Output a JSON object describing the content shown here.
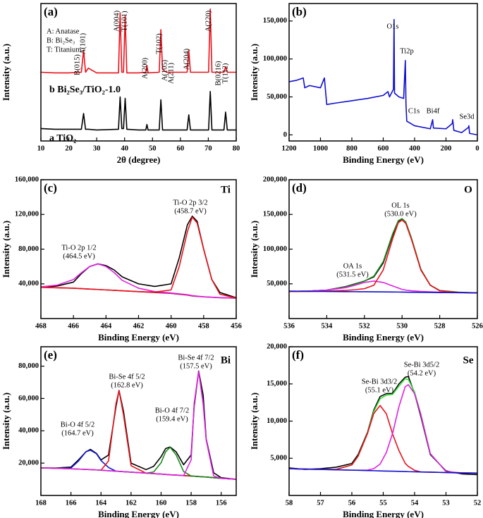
{
  "chart_data": [
    {
      "type": "line",
      "label": "(a)",
      "x_label": "2θ (degree)",
      "y_label": "Intensity (a.u.)",
      "x": [
        10,
        15,
        20,
        24.5,
        25.3,
        26,
        27,
        30,
        37.8,
        38.4,
        39,
        39.6,
        40.2,
        40.8,
        45,
        47.6,
        48,
        48.4,
        52.4,
        53,
        53.6,
        55,
        62.4,
        63,
        63.6,
        68,
        70.1,
        70.7,
        71.3,
        75.6,
        76.2,
        76.8,
        80
      ],
      "xlim": [
        10,
        80
      ],
      "xticks": [
        10,
        20,
        30,
        40,
        50,
        60,
        70,
        80
      ],
      "ylim": [
        0,
        100
      ],
      "series": [
        {
          "color": "#000000",
          "values": [
            9,
            8.5,
            8.5,
            8.5,
            20,
            8.5,
            8.5,
            8,
            8.5,
            32,
            9,
            9,
            31,
            8.5,
            8,
            8,
            12,
            8,
            8,
            30,
            8,
            8,
            8,
            19,
            8,
            8,
            8,
            36,
            8,
            8,
            21,
            8,
            8
          ]
        },
        {
          "color": "#e8121b",
          "values": [
            50,
            49.5,
            49.5,
            50,
            66,
            50,
            53,
            49.5,
            49.5,
            93,
            50,
            50,
            91,
            49.5,
            49.5,
            50,
            55,
            49.5,
            50,
            81,
            52,
            50,
            50,
            66,
            50,
            50,
            50,
            96,
            50,
            50,
            54,
            50,
            50
          ]
        }
      ],
      "annotations": [
        "A(101)",
        "B(015)",
        "A(004)",
        "T(101)",
        "A(200)",
        "T(102)",
        "A(105)",
        "A(211)",
        "A(204)",
        "A(220)",
        "B(0216)",
        "T(112)",
        "A: Anatase",
        "B: Bi₂Se₃",
        "T: Titanium",
        "b Bi₂Se₃/TiO₂-1.0",
        "a TiO₂"
      ]
    },
    {
      "type": "line",
      "label": "(b)",
      "x_label": "Binding Energy (eV)",
      "y_label": "Intensity (a.u.)",
      "x": [
        1200,
        1150,
        1110,
        1100,
        1070,
        1000,
        975,
        960,
        900,
        800,
        700,
        600,
        570,
        560,
        535,
        531,
        528,
        500,
        470,
        459,
        455,
        450,
        400,
        300,
        285,
        280,
        200,
        160,
        157,
        150,
        100,
        56,
        54,
        50,
        0
      ],
      "xlim": [
        1200,
        0
      ],
      "xticks": [
        1200,
        1000,
        800,
        600,
        400,
        200,
        0
      ],
      "ylim": [
        -8000,
        173000
      ],
      "yticks": [
        0,
        {
          "value": 50000,
          "label": "50,000"
        },
        {
          "value": 100000,
          "label": "100,000"
        },
        {
          "value": 150000,
          "label": "150,000"
        }
      ],
      "series": [
        {
          "color": "#1010d0",
          "values": [
            70000,
            72000,
            75000,
            62000,
            65000,
            62000,
            75000,
            40000,
            42000,
            45000,
            48000,
            52000,
            57000,
            50000,
            60000,
            152000,
            55000,
            50000,
            48000,
            98000,
            40000,
            18000,
            12000,
            8000,
            20000,
            9000,
            8000,
            15000,
            20000,
            6000,
            3000,
            10000,
            12000,
            2000,
            0
          ]
        }
      ],
      "annotations": [
        "O1s",
        "Ti2p",
        "C1s",
        "Bi4f",
        "Se3d"
      ]
    },
    {
      "type": "line",
      "label": "(c)",
      "x_label": "Binding Energy (eV)",
      "y_label": "Intensity (a.u.)",
      "x": [
        468,
        467,
        466,
        465.5,
        465,
        464.5,
        464,
        463.5,
        463,
        462,
        461,
        460,
        459.5,
        459,
        458.7,
        458.4,
        458,
        457.5,
        457,
        456
      ],
      "xlim": [
        468,
        456
      ],
      "xticks": [
        468,
        466,
        464,
        462,
        460,
        458,
        456
      ],
      "ylim": [
        0,
        160000
      ],
      "yticks": [
        {
          "value": 40000,
          "label": "40,000"
        },
        {
          "value": 80000,
          "label": "80,000"
        },
        {
          "value": 120000,
          "label": "120,000"
        },
        {
          "value": 160000,
          "label": "160,000"
        }
      ],
      "series": [
        {
          "color": "#000000",
          "values": [
            36000,
            37500,
            42000,
            52000,
            60000,
            63000,
            61000,
            56000,
            48000,
            40000,
            37000,
            40000,
            70000,
            108000,
            118000,
            112000,
            80000,
            45000,
            30000,
            24000
          ]
        },
        {
          "color": "#b0103a",
          "values": [
            36000,
            35500,
            35000,
            34500,
            34000,
            33500,
            33000,
            32500,
            32000,
            31000,
            30000,
            29000,
            28000,
            27000,
            26000,
            25500,
            25000,
            24500,
            24000,
            23500
          ]
        },
        {
          "color": "#e020e0",
          "values": [
            36500,
            38500,
            45000,
            53000,
            60000,
            63000,
            60000,
            53000,
            44000,
            35000,
            31000,
            29500,
            28500,
            27500,
            26500,
            25800,
            25100,
            24600,
            24100,
            23600
          ]
        },
        {
          "color": "#e8121b",
          "values": [
            36000,
            35500,
            35000,
            34500,
            34000,
            33500,
            33000,
            32500,
            32000,
            31000,
            30500,
            33000,
            60000,
            100000,
            117000,
            110000,
            80000,
            45000,
            28000,
            23600
          ]
        }
      ],
      "annotations": [
        "Ti",
        "Ti-O 2p 1/2",
        "(464.5 eV)",
        "Ti-O 2p 3/2",
        "(458.7 eV)"
      ]
    },
    {
      "type": "line",
      "label": "(d)",
      "x_label": "Binding Energy (eV)",
      "y_label": "Intensity (a.u.)",
      "x": [
        536,
        535,
        534,
        533,
        532.5,
        532,
        531.5,
        531,
        530.5,
        530.2,
        530,
        529.8,
        529.5,
        529,
        528.5,
        528,
        527,
        526
      ],
      "xlim": [
        536,
        526
      ],
      "xticks": [
        536,
        534,
        532,
        530,
        528,
        526
      ],
      "ylim": [
        0,
        200000
      ],
      "yticks": [
        {
          "value": 50000,
          "label": "50,000"
        },
        {
          "value": 100000,
          "label": "100,000"
        },
        {
          "value": 150000,
          "label": "150,000"
        },
        {
          "value": 200000,
          "label": "200,000"
        }
      ],
      "series": [
        {
          "color": "#000000",
          "values": [
            39000,
            39500,
            41000,
            46000,
            50000,
            54000,
            60000,
            80000,
            120000,
            140000,
            143000,
            138000,
            115000,
            70000,
            48000,
            40000,
            37500,
            37000
          ]
        },
        {
          "color": "#1a8a1a",
          "values": [
            39000,
            39500,
            41000,
            45500,
            49500,
            54000,
            61000,
            82000,
            122000,
            141000,
            144000,
            139000,
            116000,
            71000,
            48000,
            40500,
            38000,
            37000
          ]
        },
        {
          "color": "#e020e0",
          "values": [
            39000,
            39500,
            41000,
            44500,
            48000,
            52000,
            54000,
            52000,
            47000,
            44000,
            42000,
            41000,
            40000,
            39000,
            38500,
            38000,
            37500,
            37000
          ]
        },
        {
          "color": "#e8121b",
          "values": [
            39000,
            39000,
            39500,
            40500,
            41500,
            43000,
            48000,
            70000,
            115000,
            138000,
            142000,
            137000,
            114000,
            70000,
            48000,
            40000,
            37500,
            37000
          ]
        },
        {
          "color": "#1010d0",
          "values": [
            39500,
            39300,
            39000,
            38800,
            38700,
            38600,
            38500,
            38400,
            38300,
            38200,
            38100,
            38000,
            37900,
            37800,
            37600,
            37400,
            37200,
            37000
          ]
        }
      ],
      "annotations": [
        "O",
        "OL 1s",
        "(530.0 eV)",
        "OA 1s",
        "(531.5 eV)"
      ]
    },
    {
      "type": "line",
      "label": "(e)",
      "x_label": "Binding Energy (eV)",
      "y_label": "Intensity (a.u.)",
      "x": [
        168,
        167,
        166,
        165.5,
        165,
        164.7,
        164.3,
        164,
        163.5,
        163,
        162.8,
        162.5,
        162,
        161,
        160.5,
        160,
        159.7,
        159.4,
        159,
        158.5,
        158,
        157.8,
        157.5,
        157.2,
        157,
        156.5,
        156,
        155
      ],
      "xlim": [
        168,
        155
      ],
      "xticks": [
        168,
        166,
        164,
        162,
        160,
        158,
        156
      ],
      "ylim": [
        0,
        92000
      ],
      "yticks": [
        {
          "value": 20000,
          "label": "20,000"
        },
        {
          "value": 40000,
          "label": "40,000"
        },
        {
          "value": 60000,
          "label": "60,000"
        },
        {
          "value": 80000,
          "label": "80,000"
        }
      ],
      "series": [
        {
          "color": "#000000",
          "values": [
            17000,
            17000,
            17500,
            22000,
            27000,
            28500,
            26000,
            22000,
            25000,
            55000,
            65000,
            52000,
            20000,
            16000,
            18000,
            24000,
            29000,
            30000,
            27000,
            19000,
            25000,
            55000,
            77000,
            62000,
            35000,
            14000,
            11000,
            10000
          ]
        },
        {
          "color": "#1010d0",
          "values": [
            17000,
            16800,
            17000,
            21300,
            27100,
            28000,
            25800,
            21600,
            17300,
            15000,
            14900,
            14700,
            14400,
            13800,
            13500,
            13200,
            13000,
            12800,
            12600,
            12300,
            12000,
            11900,
            11700,
            11500,
            11400,
            11000,
            10600,
            10000
          ]
        },
        {
          "color": "#e8121b",
          "values": [
            17000,
            16800,
            16500,
            16300,
            16100,
            16000,
            15800,
            15600,
            21300,
            57000,
            64900,
            49700,
            18400,
            13800,
            13500,
            13200,
            13000,
            12800,
            12600,
            12300,
            12000,
            11900,
            11700,
            11500,
            11400,
            11000,
            10600,
            10000
          ]
        },
        {
          "color": "#1a8a1a",
          "values": [
            17000,
            16800,
            16500,
            16300,
            16100,
            16000,
            15800,
            15600,
            15300,
            15000,
            14900,
            14700,
            14400,
            13800,
            14500,
            20200,
            27000,
            29800,
            25100,
            14800,
            12000,
            11900,
            11700,
            11500,
            11400,
            11000,
            10600,
            10000
          ]
        },
        {
          "color": "#e020e0",
          "values": [
            17000,
            16800,
            16500,
            16300,
            16100,
            16000,
            15800,
            15600,
            15300,
            15000,
            14900,
            14700,
            14400,
            13800,
            13500,
            13200,
            13000,
            12800,
            12600,
            12300,
            22000,
            56900,
            76700,
            56500,
            34400,
            12000,
            10600,
            10000
          ]
        }
      ],
      "annotations": [
        "Bi",
        "Bi-Se 4f 7/2",
        "(157.5 eV)",
        "Bi-Se 4f 5/2",
        "(162.8 eV)",
        "Bi-O 4f 7/2",
        "(159.4 eV)",
        "Bi-O 4f 5/2",
        "(164.7 eV)"
      ]
    },
    {
      "type": "line",
      "label": "(f)",
      "x_label": "Binding Energy (eV)",
      "y_label": "Intensity (a.u.)",
      "x": [
        58,
        57.5,
        57,
        56.5,
        56,
        55.8,
        55.5,
        55.3,
        55.1,
        54.9,
        54.7,
        54.5,
        54.3,
        54.2,
        54,
        53.8,
        53.5,
        53,
        52.5,
        52
      ],
      "xlim": [
        58,
        52
      ],
      "xticks": [
        58,
        57,
        56,
        55,
        54,
        53,
        52
      ],
      "ylim": [
        0,
        20000
      ],
      "yticks": [
        {
          "value": 5000,
          "label": "5,000"
        },
        {
          "value": 10000,
          "label": "10,000"
        },
        {
          "value": 15000,
          "label": "15,000"
        },
        {
          "value": 20000,
          "label": "20,000"
        }
      ],
      "series": [
        {
          "color": "#000000",
          "values": [
            3700,
            3500,
            3600,
            3800,
            4300,
            5500,
            8500,
            11500,
            13300,
            13700,
            13700,
            15000,
            15900,
            16000,
            13700,
            10600,
            5500,
            3300,
            2900,
            2800
          ]
        },
        {
          "color": "#30e030",
          "values": [
            3600,
            3550,
            3500,
            3500,
            4100,
            5300,
            8400,
            11300,
            13000,
            13500,
            13600,
            14700,
            15700,
            15600,
            13900,
            10900,
            5630,
            3210,
            3030,
            3000
          ]
        },
        {
          "color": "#e8121b",
          "values": [
            3600,
            3550,
            3500,
            3500,
            4100,
            5280,
            8350,
            11030,
            12100,
            10980,
            8260,
            6040,
            4320,
            3900,
            3380,
            3160,
            3130,
            3080,
            3030,
            3000
          ]
        },
        {
          "color": "#e020e0",
          "values": [
            3600,
            3550,
            3500,
            3450,
            3400,
            3400,
            3410,
            3600,
            4220,
            5780,
            8360,
            11940,
            14620,
            14900,
            13680,
            10860,
            5630,
            3210,
            3030,
            3000
          ]
        },
        {
          "color": "#1010d0",
          "values": [
            3600,
            3550,
            3500,
            3450,
            3400,
            3380,
            3350,
            3330,
            3300,
            3280,
            3260,
            3240,
            3220,
            3200,
            3180,
            3160,
            3130,
            3080,
            3030,
            3000
          ]
        }
      ],
      "annotations": [
        "Se",
        "Se-Bi 3d5/2",
        "(54.2 eV)",
        "Se-Bi 3d3/2",
        "(55.1 eV)"
      ]
    }
  ]
}
